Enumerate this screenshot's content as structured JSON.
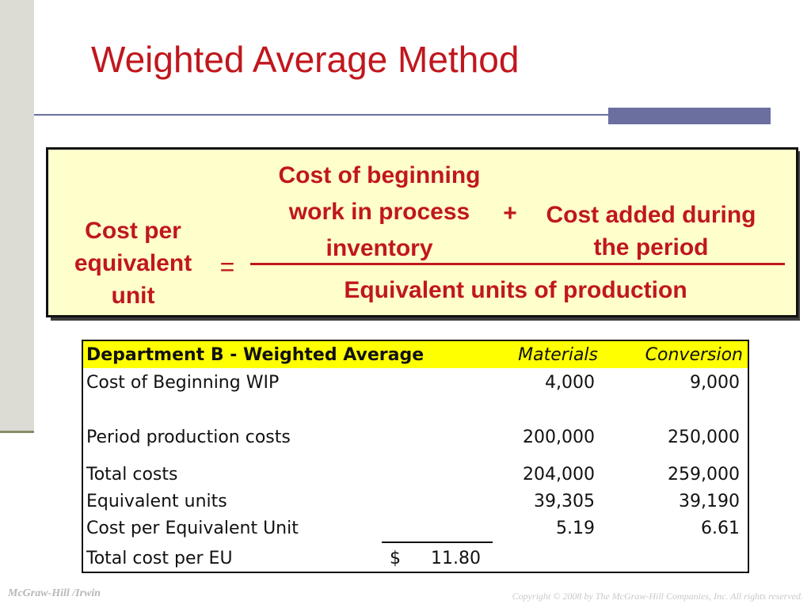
{
  "slide": {
    "title": "Weighted Average Method"
  },
  "formula": {
    "lhs_lines": [
      "Cost per",
      "equivalent",
      "unit"
    ],
    "equals": "=",
    "numerator_a_lines": [
      "Cost of beginning",
      "work in process",
      "inventory"
    ],
    "plus": "+",
    "numerator_b_lines": [
      "Cost added during",
      "the period"
    ],
    "denominator": "Equivalent units of production"
  },
  "table": {
    "header": {
      "label": "Department B - Weighted Average",
      "col_materials": "Materials",
      "col_conversion": "Conversion"
    },
    "rows": [
      {
        "label": "Cost of Beginning WIP",
        "materials": "4,000",
        "conversion": "9,000"
      },
      {
        "label": "Period production costs",
        "materials": "200,000",
        "conversion": "250,000"
      },
      {
        "label": "Total costs",
        "materials": "204,000",
        "conversion": "259,000"
      },
      {
        "label": "Equivalent units",
        "materials": "39,305",
        "conversion": "39,190"
      },
      {
        "label": "Cost per Equivalent Unit",
        "materials": "5.19",
        "conversion": "6.61"
      }
    ],
    "total": {
      "label": "Total cost per EU",
      "currency": "$",
      "value": "11.80"
    }
  },
  "footer": {
    "publisher": "McGraw-Hill /Irwin",
    "copyright": "Copyright © 2008 by The McGraw-Hill Companies, Inc. All rights reserved."
  },
  "colors": {
    "title_red": "#c0171d",
    "formula_bg": "#ffffcc",
    "header_yellow": "#ffff00",
    "accent_blue": "#6a6fa0"
  }
}
